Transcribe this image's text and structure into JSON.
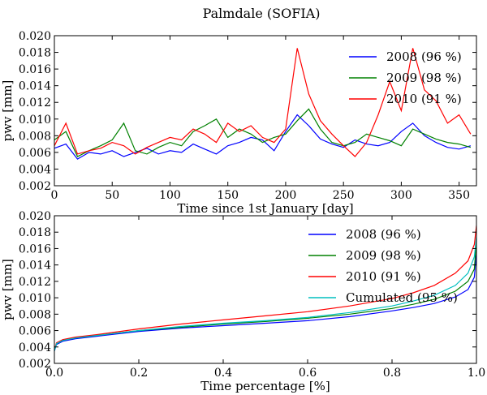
{
  "title": "Palmdale (SOFIA)",
  "colors": {
    "2008": "#0000ff",
    "2009": "#008000",
    "2010": "#ff0000",
    "cumulated": "#00bfbf"
  },
  "chart_data": [
    {
      "type": "line",
      "name": "time-series",
      "xlabel": "Time since 1st January [day]",
      "ylabel": "pwv [mm]",
      "xlim": [
        0,
        365
      ],
      "ylim": [
        0.002,
        0.02
      ],
      "xticks": [
        0,
        50,
        100,
        150,
        200,
        250,
        300,
        350
      ],
      "xtick_labels": [
        "0",
        "50",
        "100",
        "150",
        "200",
        "250",
        "300",
        "350"
      ],
      "yticks": [
        0.002,
        0.004,
        0.006,
        0.008,
        0.01,
        0.012,
        0.014,
        0.016,
        0.018,
        0.02
      ],
      "ytick_labels": [
        "0.002",
        "0.004",
        "0.006",
        "0.008",
        "0.010",
        "0.012",
        "0.014",
        "0.016",
        "0.018",
        "0.020"
      ],
      "legend_position": "top-right",
      "series": [
        {
          "name": "2008 (96 %)",
          "color_key": "2008",
          "x": [
            0,
            10,
            20,
            30,
            40,
            50,
            60,
            70,
            80,
            90,
            100,
            110,
            120,
            130,
            140,
            150,
            160,
            170,
            180,
            190,
            200,
            210,
            220,
            230,
            240,
            250,
            260,
            270,
            280,
            290,
            300,
            310,
            320,
            330,
            340,
            350,
            360
          ],
          "y": [
            0.0065,
            0.007,
            0.0052,
            0.006,
            0.0058,
            0.0062,
            0.0055,
            0.006,
            0.0065,
            0.0058,
            0.0062,
            0.006,
            0.007,
            0.0064,
            0.0058,
            0.0068,
            0.0072,
            0.0078,
            0.0075,
            0.0062,
            0.0085,
            0.0105,
            0.0092,
            0.0076,
            0.007,
            0.0066,
            0.0075,
            0.007,
            0.0068,
            0.0072,
            0.0085,
            0.0095,
            0.008,
            0.0072,
            0.0066,
            0.0064,
            0.0068
          ]
        },
        {
          "name": "2009 (98 %)",
          "color_key": "2009",
          "x": [
            0,
            10,
            20,
            30,
            40,
            50,
            60,
            70,
            80,
            90,
            100,
            110,
            120,
            130,
            140,
            150,
            160,
            170,
            180,
            190,
            200,
            210,
            220,
            230,
            240,
            250,
            260,
            270,
            280,
            290,
            300,
            310,
            320,
            330,
            340,
            350,
            360
          ],
          "y": [
            0.0075,
            0.0085,
            0.0055,
            0.0062,
            0.0068,
            0.0075,
            0.0095,
            0.0062,
            0.0058,
            0.0066,
            0.0072,
            0.0068,
            0.0085,
            0.0092,
            0.01,
            0.0078,
            0.0088,
            0.0082,
            0.0072,
            0.0078,
            0.0082,
            0.0098,
            0.0112,
            0.0088,
            0.0072,
            0.0068,
            0.0072,
            0.0082,
            0.0078,
            0.0074,
            0.0068,
            0.0088,
            0.0082,
            0.0076,
            0.0072,
            0.007,
            0.0066
          ]
        },
        {
          "name": "2010 (91 %)",
          "color_key": "2010",
          "x": [
            0,
            10,
            20,
            30,
            40,
            50,
            60,
            70,
            80,
            90,
            100,
            110,
            120,
            130,
            140,
            150,
            160,
            170,
            180,
            190,
            200,
            210,
            220,
            230,
            240,
            250,
            260,
            270,
            280,
            290,
            300,
            310,
            320,
            330,
            340,
            350,
            360
          ],
          "y": [
            0.0068,
            0.0095,
            0.0058,
            0.0062,
            0.0065,
            0.0072,
            0.0068,
            0.0058,
            0.0066,
            0.0072,
            0.0078,
            0.0075,
            0.0088,
            0.0082,
            0.0072,
            0.0095,
            0.0085,
            0.0092,
            0.0078,
            0.0072,
            0.0088,
            0.0185,
            0.013,
            0.0098,
            0.0082,
            0.0068,
            0.0055,
            0.0072,
            0.0105,
            0.0145,
            0.011,
            0.0185,
            0.0135,
            0.0122,
            0.0095,
            0.0105,
            0.0082
          ]
        }
      ]
    },
    {
      "type": "line",
      "name": "cumulative",
      "xlabel": "Time percentage [%]",
      "ylabel": "pwv [mm]",
      "xlim": [
        0.0,
        1.0
      ],
      "ylim": [
        0.002,
        0.02
      ],
      "xticks": [
        0.0,
        0.2,
        0.4,
        0.6,
        0.8,
        1.0
      ],
      "xtick_labels": [
        "0.0",
        "0.2",
        "0.4",
        "0.6",
        "0.8",
        "1.0"
      ],
      "yticks": [
        0.002,
        0.004,
        0.006,
        0.008,
        0.01,
        0.012,
        0.014,
        0.016,
        0.018,
        0.02
      ],
      "ytick_labels": [
        "0.002",
        "0.004",
        "0.006",
        "0.008",
        "0.010",
        "0.012",
        "0.014",
        "0.016",
        "0.018",
        "0.020"
      ],
      "legend_position": "top-right",
      "series": [
        {
          "name": "2008 (96 %)",
          "color_key": "2008",
          "x": [
            0,
            0.005,
            0.02,
            0.05,
            0.1,
            0.2,
            0.3,
            0.4,
            0.5,
            0.6,
            0.7,
            0.8,
            0.85,
            0.9,
            0.95,
            0.98,
            0.995,
            1.0
          ],
          "y": [
            0.0035,
            0.0043,
            0.0047,
            0.005,
            0.0053,
            0.0059,
            0.0063,
            0.0066,
            0.0069,
            0.0072,
            0.0077,
            0.0084,
            0.0088,
            0.0093,
            0.0101,
            0.011,
            0.0125,
            0.0155
          ]
        },
        {
          "name": "2009 (98 %)",
          "color_key": "2009",
          "x": [
            0,
            0.005,
            0.02,
            0.05,
            0.1,
            0.2,
            0.3,
            0.4,
            0.5,
            0.6,
            0.7,
            0.8,
            0.85,
            0.9,
            0.95,
            0.98,
            0.995,
            1.0
          ],
          "y": [
            0.0036,
            0.0044,
            0.0048,
            0.0051,
            0.0054,
            0.006,
            0.0064,
            0.0068,
            0.0071,
            0.0075,
            0.008,
            0.0087,
            0.0092,
            0.0098,
            0.0108,
            0.012,
            0.0135,
            0.017
          ]
        },
        {
          "name": "2010 (91 %)",
          "color_key": "2010",
          "x": [
            0,
            0.005,
            0.02,
            0.05,
            0.1,
            0.2,
            0.3,
            0.4,
            0.5,
            0.6,
            0.7,
            0.8,
            0.85,
            0.9,
            0.95,
            0.98,
            0.995,
            1.0
          ],
          "y": [
            0.0037,
            0.0045,
            0.0049,
            0.0052,
            0.0055,
            0.0062,
            0.0068,
            0.0073,
            0.0078,
            0.0083,
            0.009,
            0.0099,
            0.0106,
            0.0115,
            0.013,
            0.0145,
            0.0165,
            0.0188
          ]
        },
        {
          "name": "Cumulated (95 %)",
          "color_key": "cumulated",
          "x": [
            0,
            0.005,
            0.02,
            0.05,
            0.1,
            0.2,
            0.3,
            0.4,
            0.5,
            0.6,
            0.7,
            0.8,
            0.85,
            0.9,
            0.95,
            0.98,
            0.995,
            1.0
          ],
          "y": [
            0.0035,
            0.0044,
            0.0048,
            0.0051,
            0.0054,
            0.006,
            0.0065,
            0.0069,
            0.0072,
            0.0076,
            0.0082,
            0.009,
            0.0096,
            0.0103,
            0.0115,
            0.013,
            0.015,
            0.0175
          ]
        }
      ]
    }
  ]
}
